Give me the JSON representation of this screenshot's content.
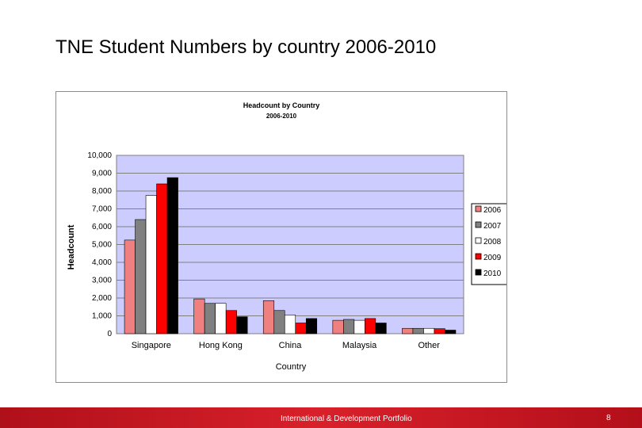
{
  "slide": {
    "title": "TNE Student Numbers by country 2006-2010"
  },
  "footer": {
    "text": "International & Development Portfolio",
    "page_number": "8"
  },
  "colors": {
    "plot_background": "#ccccff",
    "footer_red": "#c8161f"
  },
  "chart_data": {
    "type": "bar",
    "title": "Headcount by Country",
    "subtitle": "2006-2010",
    "xlabel": "Country",
    "ylabel": "Headcount",
    "categories": [
      "Singapore",
      "Hong Kong",
      "China",
      "Malaysia",
      "Other"
    ],
    "ylim": [
      0,
      10000
    ],
    "yticks": [
      0,
      1000,
      2000,
      3000,
      4000,
      5000,
      6000,
      7000,
      8000,
      9000,
      10000
    ],
    "ytick_labels": [
      "0",
      "1,000",
      "2,000",
      "3,000",
      "4,000",
      "5,000",
      "6,000",
      "7,000",
      "8,000",
      "9,000",
      "10,000"
    ],
    "grid": true,
    "legend_position": "right",
    "series": [
      {
        "name": "2006",
        "color": "#f08080",
        "values": [
          5250,
          1950,
          1850,
          750,
          300
        ]
      },
      {
        "name": "2007",
        "color": "#808080",
        "values": [
          6400,
          1700,
          1300,
          800,
          300
        ]
      },
      {
        "name": "2008",
        "color": "#ffffff",
        "values": [
          7750,
          1700,
          1050,
          750,
          300
        ]
      },
      {
        "name": "2009",
        "color": "#ff0000",
        "values": [
          8400,
          1300,
          600,
          850,
          280
        ]
      },
      {
        "name": "2010",
        "color": "#000000",
        "values": [
          8750,
          950,
          850,
          600,
          200
        ]
      }
    ]
  }
}
